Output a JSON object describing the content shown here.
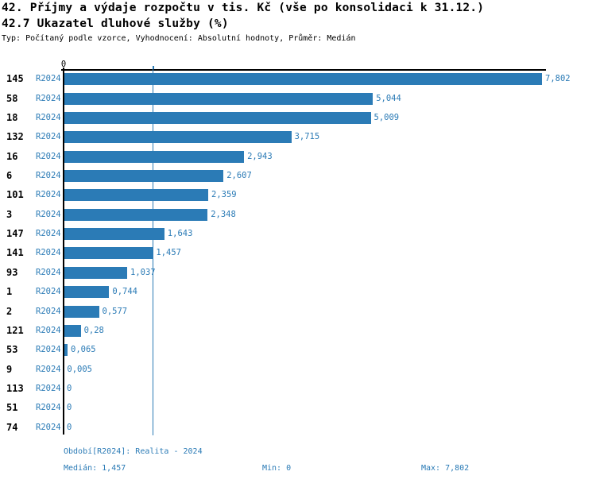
{
  "header": {
    "title_line1": "42. Příjmy a výdaje rozpočtu v tis. Kč (vše po konsolidaci k 31.12.)",
    "title_line2": "42.7 Ukazatel dluhové služby (%)",
    "subtitle": "Typ: Počítaný podle vzorce, Vyhodnocení: Absolutní hodnoty, Průměr: Medián"
  },
  "colors": {
    "accent_blue": "#2b7bb6",
    "axis_black": "#000000",
    "background": "#ffffff"
  },
  "chart_data": {
    "type": "bar",
    "orientation": "horizontal",
    "title": "42.7 Ukazatel dluhové služby (%)",
    "xlabel": "",
    "ylabel": "",
    "axis_min": 0,
    "axis_max": 7.802,
    "x_tick_labels": [
      "0"
    ],
    "grid": "median-line-only",
    "median_value": 1.457,
    "series_name": "R2024",
    "categories": [
      "145",
      "58",
      "18",
      "132",
      "16",
      "6",
      "101",
      "3",
      "147",
      "141",
      "93",
      "1",
      "2",
      "121",
      "53",
      "9",
      "113",
      "51",
      "74"
    ],
    "rows": [
      {
        "label": "145",
        "period": "R2024",
        "value": 7.802,
        "value_label": "7,802"
      },
      {
        "label": "58",
        "period": "R2024",
        "value": 5.044,
        "value_label": "5,044"
      },
      {
        "label": "18",
        "period": "R2024",
        "value": 5.009,
        "value_label": "5,009"
      },
      {
        "label": "132",
        "period": "R2024",
        "value": 3.715,
        "value_label": "3,715"
      },
      {
        "label": "16",
        "period": "R2024",
        "value": 2.943,
        "value_label": "2,943"
      },
      {
        "label": "6",
        "period": "R2024",
        "value": 2.607,
        "value_label": "2,607"
      },
      {
        "label": "101",
        "period": "R2024",
        "value": 2.359,
        "value_label": "2,359"
      },
      {
        "label": "3",
        "period": "R2024",
        "value": 2.348,
        "value_label": "2,348"
      },
      {
        "label": "147",
        "period": "R2024",
        "value": 1.643,
        "value_label": "1,643"
      },
      {
        "label": "141",
        "period": "R2024",
        "value": 1.457,
        "value_label": "1,457"
      },
      {
        "label": "93",
        "period": "R2024",
        "value": 1.037,
        "value_label": "1,037"
      },
      {
        "label": "1",
        "period": "R2024",
        "value": 0.744,
        "value_label": "0,744"
      },
      {
        "label": "2",
        "period": "R2024",
        "value": 0.577,
        "value_label": "0,577"
      },
      {
        "label": "121",
        "period": "R2024",
        "value": 0.28,
        "value_label": "0,28"
      },
      {
        "label": "53",
        "period": "R2024",
        "value": 0.065,
        "value_label": "0,065"
      },
      {
        "label": "9",
        "period": "R2024",
        "value": 0.005,
        "value_label": "0,005"
      },
      {
        "label": "113",
        "period": "R2024",
        "value": 0,
        "value_label": "0"
      },
      {
        "label": "51",
        "period": "R2024",
        "value": 0,
        "value_label": "0"
      },
      {
        "label": "74",
        "period": "R2024",
        "value": 0,
        "value_label": "0"
      }
    ]
  },
  "footer": {
    "period_line": "Období[R2024]: Realita - 2024",
    "median": "Medián: 1,457",
    "min": "Min: 0",
    "max": "Max: 7,802"
  }
}
